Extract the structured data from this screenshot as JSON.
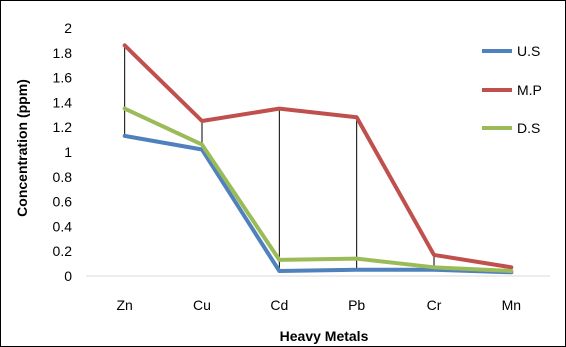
{
  "chart_data": {
    "type": "line",
    "categories": [
      "Zn",
      "Cu",
      "Cd",
      "Pb",
      "Cr",
      "Mn"
    ],
    "series": [
      {
        "name": "U.S",
        "values": [
          1.13,
          1.02,
          0.04,
          0.05,
          0.05,
          0.03
        ],
        "color": "#4f81bd"
      },
      {
        "name": "M.P",
        "values": [
          1.86,
          1.25,
          1.35,
          1.28,
          0.17,
          0.07
        ],
        "color": "#c0504d"
      },
      {
        "name": "D.S",
        "values": [
          1.35,
          1.06,
          0.13,
          0.14,
          0.07,
          0.04
        ],
        "color": "#9bbb59"
      }
    ],
    "high_low_lines": true,
    "xlabel": "Heavy Metals",
    "ylabel": "Concentration  (ppm)",
    "ylim": [
      0,
      2
    ],
    "yticks": [
      "0",
      "0.2",
      "0.4",
      "0.6",
      "0.8",
      "1",
      "1.2",
      "1.4",
      "1.6",
      "1.8",
      "2"
    ],
    "grid": false,
    "legend_position": "right"
  }
}
